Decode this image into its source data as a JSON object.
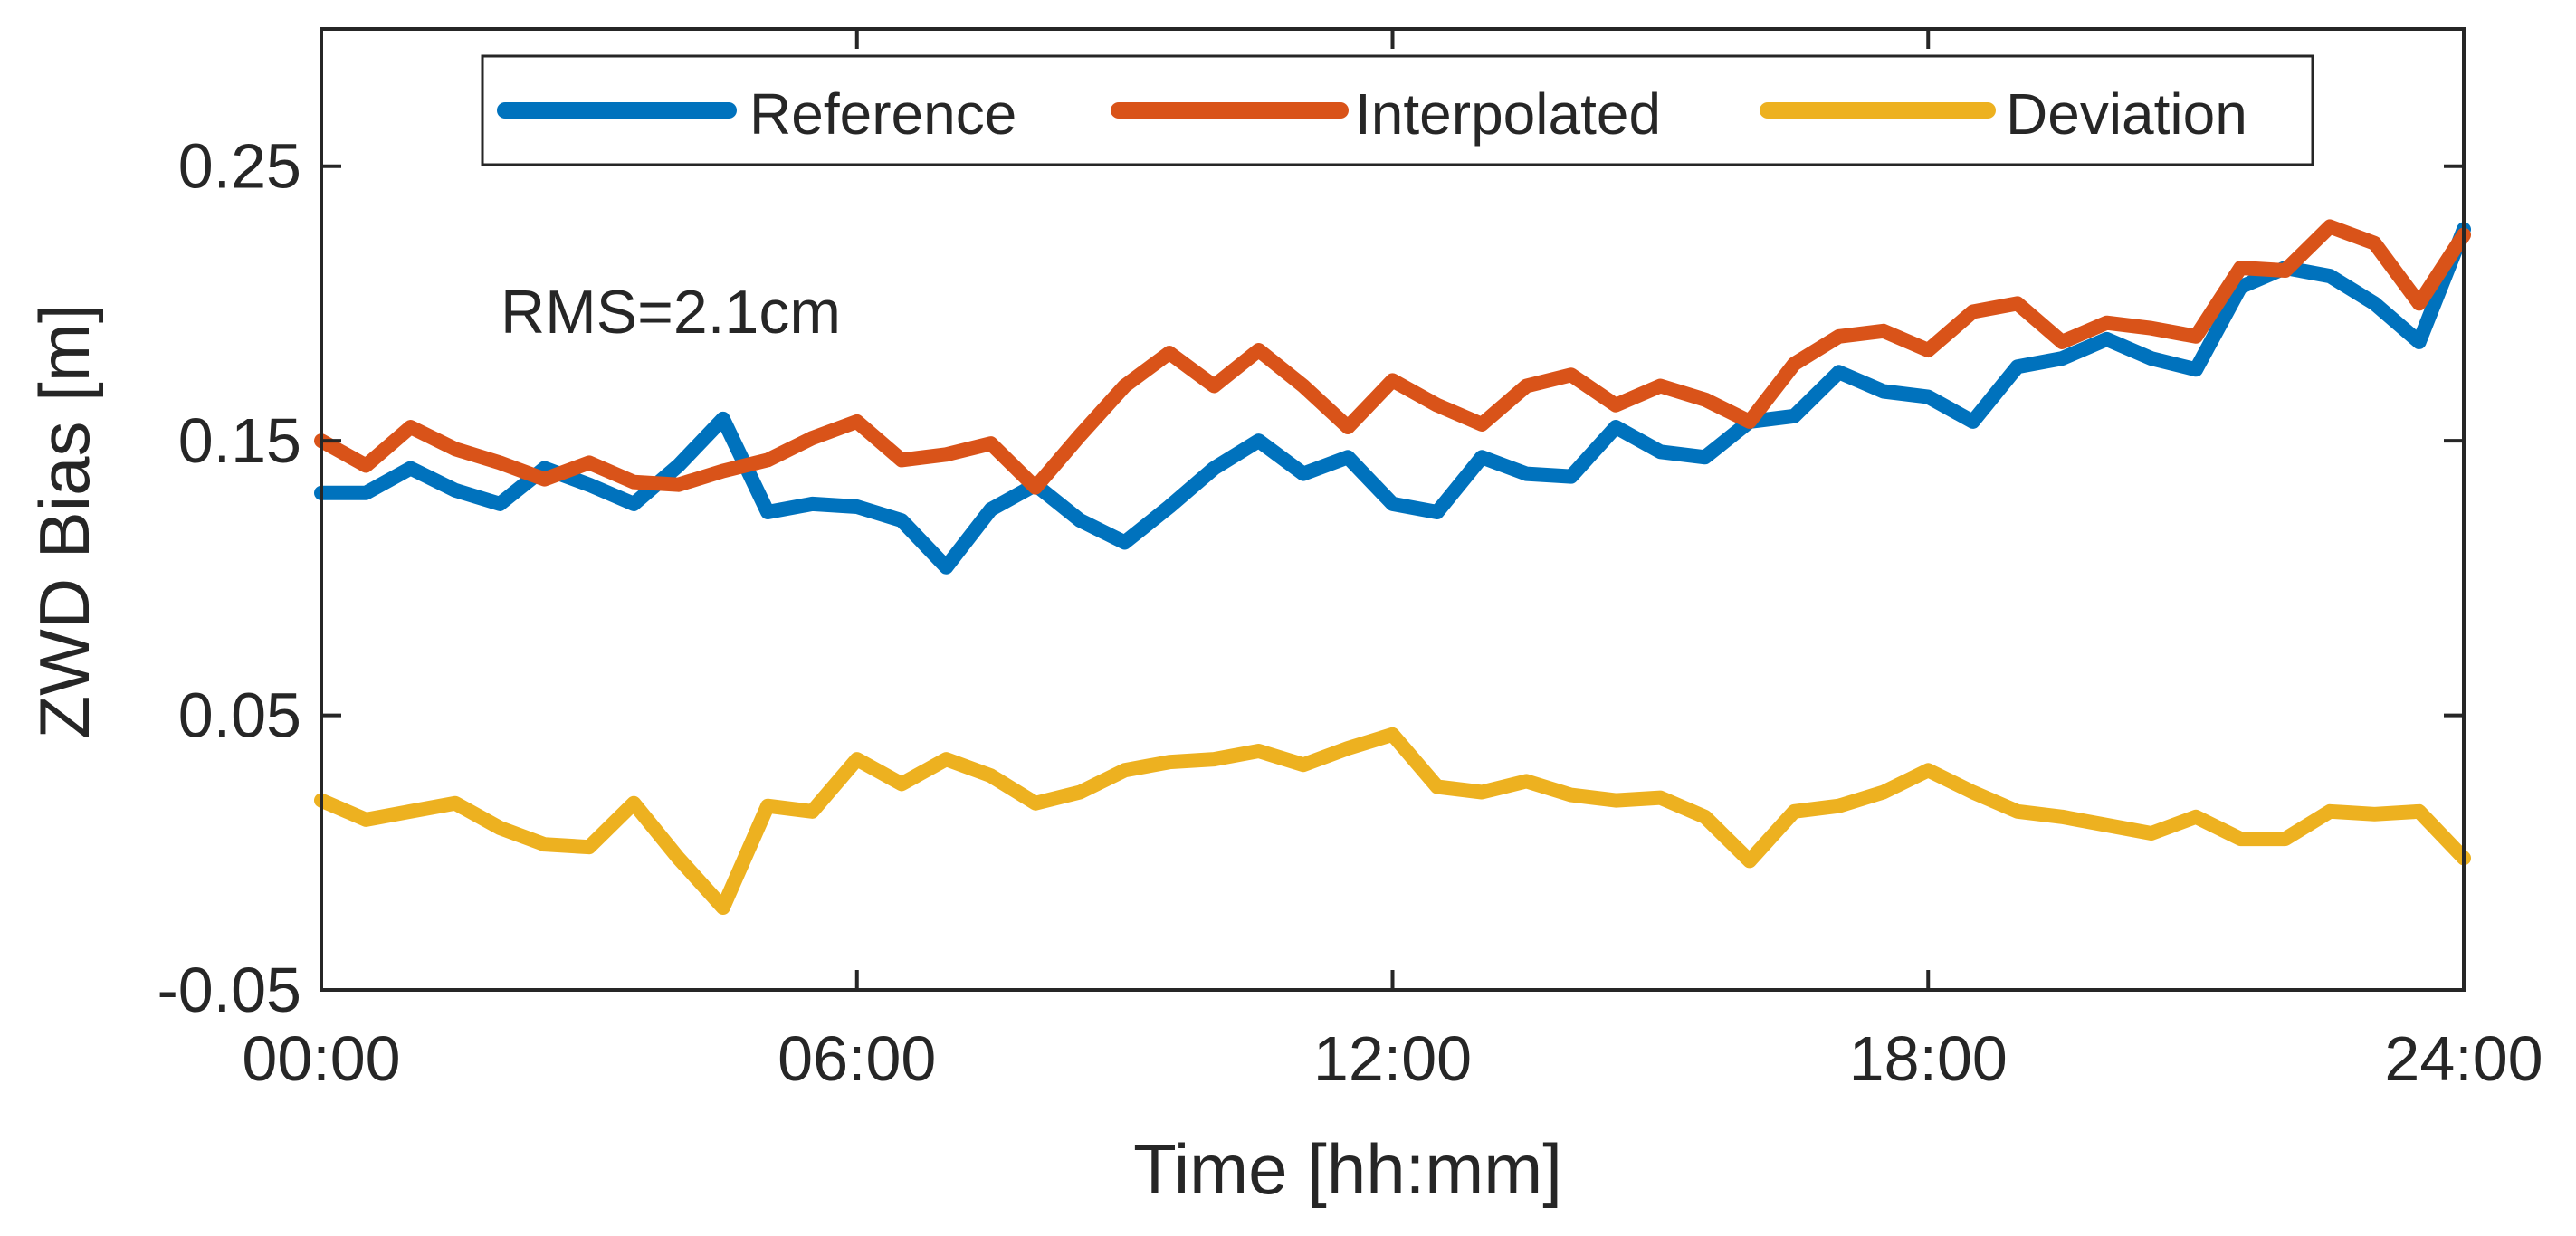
{
  "chart_data": {
    "type": "line",
    "xlabel": "Time [hh:mm]",
    "ylabel": "ZWD Bias [m]",
    "xlim": [
      0,
      24
    ],
    "ylim": [
      -0.05,
      0.3
    ],
    "x_ticks": [
      0,
      6,
      12,
      18,
      24
    ],
    "x_tick_labels": [
      "00:00",
      "06:00",
      "12:00",
      "18:00",
      "24:00"
    ],
    "y_ticks": [
      -0.05,
      0.05,
      0.15,
      0.25
    ],
    "y_tick_labels": [
      "-0.05",
      "0.05",
      "0.15",
      "0.25"
    ],
    "grid": false,
    "legend_position": "top",
    "annotation": "RMS=2.1cm",
    "x": [
      0,
      0.5,
      1,
      1.5,
      2,
      2.5,
      3,
      3.5,
      4,
      4.5,
      5,
      5.5,
      6,
      6.5,
      7,
      7.5,
      8,
      8.5,
      9,
      9.5,
      10,
      10.5,
      11,
      11.5,
      12,
      12.5,
      13,
      13.5,
      14,
      14.5,
      15,
      15.5,
      16,
      16.5,
      17,
      17.5,
      18,
      18.5,
      19,
      19.5,
      20,
      20.5,
      21,
      21.5,
      22,
      22.5,
      23,
      23.5,
      24
    ],
    "series": [
      {
        "name": "Reference",
        "color": "#0072BD",
        "values": [
          0.131,
          0.131,
          0.14,
          0.132,
          0.127,
          0.14,
          0.134,
          0.127,
          0.141,
          0.158,
          0.124,
          0.127,
          0.126,
          0.121,
          0.104,
          0.125,
          0.134,
          0.121,
          0.113,
          0.126,
          0.14,
          0.15,
          0.138,
          0.144,
          0.127,
          0.124,
          0.144,
          0.138,
          0.137,
          0.155,
          0.146,
          0.144,
          0.157,
          0.159,
          0.175,
          0.168,
          0.166,
          0.157,
          0.177,
          0.18,
          0.187,
          0.18,
          0.176,
          0.206,
          0.213,
          0.21,
          0.2,
          0.186,
          0.227
        ]
      },
      {
        "name": "Interpolated",
        "color": "#D95319",
        "values": [
          0.15,
          0.141,
          0.155,
          0.147,
          0.142,
          0.136,
          0.142,
          0.135,
          0.134,
          0.139,
          0.143,
          0.151,
          0.157,
          0.143,
          0.145,
          0.149,
          0.133,
          0.152,
          0.17,
          0.182,
          0.17,
          0.183,
          0.17,
          0.155,
          0.172,
          0.163,
          0.156,
          0.17,
          0.174,
          0.163,
          0.17,
          0.165,
          0.157,
          0.178,
          0.188,
          0.19,
          0.183,
          0.197,
          0.2,
          0.186,
          0.193,
          0.191,
          0.188,
          0.213,
          0.212,
          0.228,
          0.222,
          0.2,
          0.225
        ]
      },
      {
        "name": "Deviation",
        "color": "#EDB120",
        "values": [
          0.019,
          0.012,
          0.015,
          0.018,
          0.009,
          0.003,
          0.002,
          0.018,
          -0.002,
          -0.02,
          0.017,
          0.015,
          0.034,
          0.025,
          0.034,
          0.028,
          0.018,
          0.022,
          0.03,
          0.033,
          0.034,
          0.037,
          0.032,
          0.038,
          0.043,
          0.024,
          0.022,
          0.026,
          0.021,
          0.019,
          0.02,
          0.013,
          -0.003,
          0.015,
          0.017,
          0.022,
          0.03,
          0.022,
          0.015,
          0.013,
          0.01,
          0.007,
          0.013,
          0.005,
          0.005,
          0.015,
          0.014,
          0.015,
          -0.002
        ]
      }
    ]
  }
}
